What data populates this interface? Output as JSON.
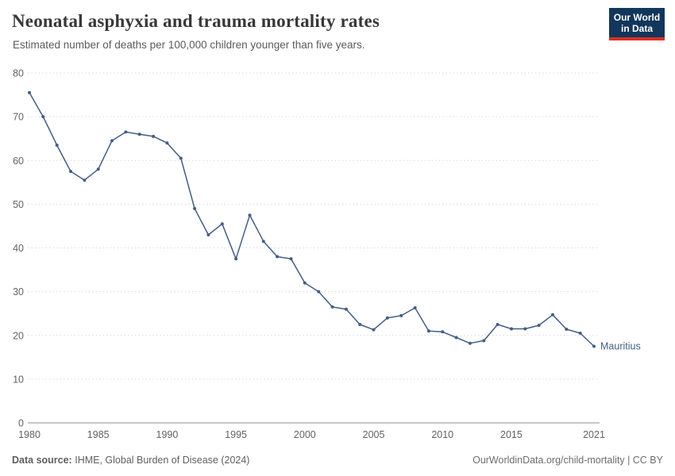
{
  "header": {
    "title": "Neonatal asphyxia and trauma mortality rates",
    "subtitle": "Estimated number of deaths per 100,000 children younger than five years.",
    "logo_line1": "Our World",
    "logo_line2": "in Data",
    "logo_bg_color": "#12365c",
    "logo_accent_color": "#d93025"
  },
  "chart_data": {
    "type": "line",
    "title": "Neonatal asphyxia and trauma mortality rates",
    "xlabel": "",
    "ylabel": "",
    "ylim": [
      0,
      80
    ],
    "yticks": [
      0,
      10,
      20,
      30,
      40,
      50,
      60,
      70,
      80
    ],
    "xticks": [
      1980,
      1985,
      1990,
      1995,
      2000,
      2005,
      2010,
      2015,
      2021
    ],
    "grid": "horizontal-dotted",
    "grid_color": "#d9d9d9",
    "axis_color": "#8f8f8f",
    "x": [
      1980,
      1981,
      1982,
      1983,
      1984,
      1985,
      1986,
      1987,
      1988,
      1989,
      1990,
      1991,
      1992,
      1993,
      1994,
      1995,
      1996,
      1997,
      1998,
      1999,
      2000,
      2001,
      2002,
      2003,
      2004,
      2005,
      2006,
      2007,
      2008,
      2009,
      2010,
      2011,
      2012,
      2013,
      2014,
      2015,
      2016,
      2017,
      2018,
      2019,
      2020,
      2021
    ],
    "series": [
      {
        "name": "Mauritius",
        "color": "#435e85",
        "values": [
          75.5,
          70,
          63.5,
          57.5,
          55.5,
          58,
          64.5,
          66.5,
          66,
          65.5,
          64,
          60.5,
          49,
          43,
          45.5,
          37.5,
          47.5,
          41.5,
          38,
          37.5,
          32,
          30,
          26.5,
          26,
          22.5,
          21.3,
          24,
          24.5,
          26.3,
          21,
          20.8,
          19.5,
          18.2,
          18.8,
          22.5,
          21.5,
          21.5,
          22.3,
          24.7,
          21.4,
          20.5,
          17.5
        ]
      }
    ],
    "legend_position": "end-of-line-label"
  },
  "footer": {
    "source_label": "Data source:",
    "source_text": "IHME, Global Burden of Disease (2024)",
    "credit": "OurWorldinData.org/child-mortality | CC BY"
  }
}
